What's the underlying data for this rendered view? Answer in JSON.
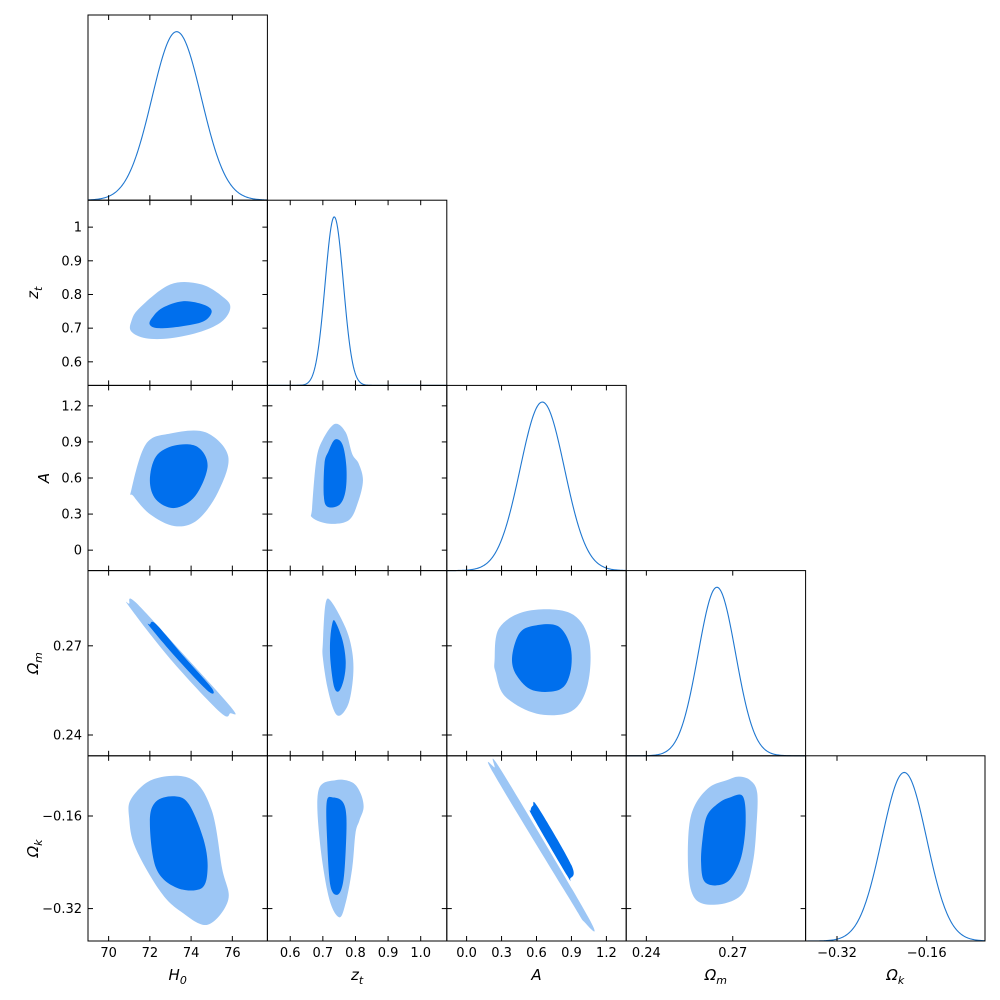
{
  "chart_data": {
    "type": "triangle-corner-plot",
    "colors": {
      "inner": "#006FED",
      "outer": "#9CC6F5",
      "line": "#1F77D0",
      "frame": "#000000"
    },
    "params": [
      {
        "key": "H0",
        "label": "H",
        "sub": "0",
        "range": [
          69,
          77.7
        ],
        "ticks": [
          70,
          72,
          74,
          76
        ],
        "tick_labels": [
          "70",
          "72",
          "74",
          "76"
        ],
        "mean": 73.3,
        "sigma": 1.2
      },
      {
        "key": "zt",
        "label": "z",
        "sub": "t",
        "range": [
          0.53,
          1.08
        ],
        "ticks": [
          0.6,
          0.7,
          0.8,
          0.9,
          1.0
        ],
        "tick_labels": [
          "0.6",
          "0.7",
          "0.8",
          "0.9",
          "1.0"
        ],
        "diag_tick_labels": [
          "0.6",
          "0.7",
          "0.8",
          "0.9",
          "1"
        ],
        "mean": 0.735,
        "sigma": 0.028
      },
      {
        "key": "A",
        "label": "A",
        "sub": "",
        "range": [
          -0.17,
          1.37
        ],
        "ticks": [
          0.0,
          0.3,
          0.6,
          0.9,
          1.2
        ],
        "tick_labels": [
          "0.0",
          "0.3",
          "0.6",
          "0.9",
          "1.2"
        ],
        "diag_tick_labels": [
          "0",
          "0.3",
          "0.6",
          "0.9",
          "1.2"
        ],
        "mean": 0.65,
        "sigma": 0.19
      },
      {
        "key": "Om",
        "label": "Ω",
        "sub": "m",
        "range": [
          0.233,
          0.2953
        ],
        "ticks": [
          0.24,
          0.27
        ],
        "tick_labels": [
          "0.24",
          "0.27"
        ],
        "mean": 0.2645,
        "sigma": 0.0065
      },
      {
        "key": "Ok",
        "label": "Ω",
        "sub": "k",
        "range": [
          -0.376,
          -0.056
        ],
        "ticks": [
          -0.32,
          -0.16
        ],
        "tick_labels": [
          "−0.32",
          "−0.16"
        ],
        "mean": -0.2,
        "sigma": 0.04
      }
    ],
    "contours": [
      {
        "row": 1,
        "col": 0,
        "outer": [
          [
            71.1,
            0.72
          ],
          [
            71.5,
            0.76
          ],
          [
            73.0,
            0.83
          ],
          [
            74.5,
            0.83
          ],
          [
            75.6,
            0.79
          ],
          [
            75.9,
            0.76
          ],
          [
            75.5,
            0.72
          ],
          [
            74.5,
            0.69
          ],
          [
            73.0,
            0.67
          ],
          [
            71.8,
            0.67
          ],
          [
            71.1,
            0.69
          ]
        ],
        "inner": [
          [
            72.1,
            0.73
          ],
          [
            72.6,
            0.76
          ],
          [
            73.6,
            0.78
          ],
          [
            74.6,
            0.77
          ],
          [
            75.0,
            0.75
          ],
          [
            74.6,
            0.72
          ],
          [
            73.5,
            0.705
          ],
          [
            72.4,
            0.7
          ],
          [
            72.0,
            0.71
          ]
        ]
      },
      {
        "row": 2,
        "col": 0,
        "outer": [
          [
            71.1,
            0.5
          ],
          [
            71.8,
            0.88
          ],
          [
            73.0,
            0.97
          ],
          [
            74.7,
            0.98
          ],
          [
            75.8,
            0.78
          ],
          [
            75.3,
            0.48
          ],
          [
            74.3,
            0.25
          ],
          [
            73.2,
            0.2
          ],
          [
            72.0,
            0.3
          ],
          [
            71.2,
            0.45
          ]
        ],
        "inner": [
          [
            72.0,
            0.58
          ],
          [
            72.3,
            0.78
          ],
          [
            73.2,
            0.87
          ],
          [
            74.3,
            0.86
          ],
          [
            74.8,
            0.7
          ],
          [
            74.2,
            0.45
          ],
          [
            73.2,
            0.35
          ],
          [
            72.3,
            0.42
          ]
        ]
      },
      {
        "row": 2,
        "col": 1,
        "outer": [
          [
            0.667,
            0.35
          ],
          [
            0.68,
            0.75
          ],
          [
            0.7,
            0.92
          ],
          [
            0.737,
            1.05
          ],
          [
            0.77,
            0.98
          ],
          [
            0.79,
            0.8
          ],
          [
            0.81,
            0.72
          ],
          [
            0.823,
            0.58
          ],
          [
            0.808,
            0.4
          ],
          [
            0.78,
            0.25
          ],
          [
            0.72,
            0.22
          ],
          [
            0.668,
            0.27
          ]
        ],
        "inner": [
          [
            0.703,
            0.45
          ],
          [
            0.705,
            0.72
          ],
          [
            0.717,
            0.82
          ],
          [
            0.737,
            0.92
          ],
          [
            0.76,
            0.88
          ],
          [
            0.772,
            0.7
          ],
          [
            0.77,
            0.5
          ],
          [
            0.752,
            0.38
          ],
          [
            0.715,
            0.36
          ]
        ]
      },
      {
        "row": 3,
        "col": 0,
        "outer": [
          [
            71.0,
            0.2842
          ],
          [
            71.3,
            0.2847
          ],
          [
            73.7,
            0.2666
          ],
          [
            76.0,
            0.2488
          ],
          [
            75.9,
            0.2473
          ],
          [
            75.4,
            0.2477
          ],
          [
            73.0,
            0.2655
          ],
          [
            71.0,
            0.2832
          ]
        ],
        "inner": [
          [
            72.0,
            0.2772
          ],
          [
            72.3,
            0.2773
          ],
          [
            73.6,
            0.2668
          ],
          [
            75.0,
            0.2558
          ],
          [
            74.8,
            0.2549
          ],
          [
            73.3,
            0.2658
          ],
          [
            72.0,
            0.2764
          ]
        ]
      },
      {
        "row": 3,
        "col": 1,
        "outer": [
          [
            0.7,
            0.271
          ],
          [
            0.708,
            0.284
          ],
          [
            0.725,
            0.285
          ],
          [
            0.77,
            0.276
          ],
          [
            0.79,
            0.268
          ],
          [
            0.793,
            0.26
          ],
          [
            0.78,
            0.251
          ],
          [
            0.755,
            0.2467
          ],
          [
            0.735,
            0.248
          ],
          [
            0.714,
            0.256
          ],
          [
            0.7,
            0.266
          ]
        ],
        "inner": [
          [
            0.722,
            0.271
          ],
          [
            0.728,
            0.277
          ],
          [
            0.737,
            0.2783
          ],
          [
            0.76,
            0.272
          ],
          [
            0.77,
            0.265
          ],
          [
            0.765,
            0.259
          ],
          [
            0.75,
            0.2548
          ],
          [
            0.735,
            0.256
          ],
          [
            0.724,
            0.264
          ]
        ]
      },
      {
        "row": 3,
        "col": 2,
        "outer": [
          [
            0.24,
            0.265
          ],
          [
            0.28,
            0.276
          ],
          [
            0.52,
            0.2817
          ],
          [
            0.89,
            0.281
          ],
          [
            1.05,
            0.272
          ],
          [
            1.04,
            0.257
          ],
          [
            0.9,
            0.248
          ],
          [
            0.6,
            0.2472
          ],
          [
            0.33,
            0.253
          ],
          [
            0.25,
            0.261
          ]
        ],
        "inner": [
          [
            0.39,
            0.266
          ],
          [
            0.45,
            0.274
          ],
          [
            0.57,
            0.2767
          ],
          [
            0.78,
            0.2767
          ],
          [
            0.89,
            0.27
          ],
          [
            0.89,
            0.261
          ],
          [
            0.8,
            0.2553
          ],
          [
            0.57,
            0.255
          ],
          [
            0.43,
            0.26
          ]
        ]
      },
      {
        "row": 4,
        "col": 0,
        "outer": [
          [
            71.1,
            -0.13
          ],
          [
            72.2,
            -0.096
          ],
          [
            74.0,
            -0.096
          ],
          [
            75.0,
            -0.15
          ],
          [
            75.5,
            -0.25
          ],
          [
            75.8,
            -0.305
          ],
          [
            74.8,
            -0.348
          ],
          [
            73.5,
            -0.325
          ],
          [
            72.5,
            -0.29
          ],
          [
            71.3,
            -0.215
          ],
          [
            71.0,
            -0.165
          ]
        ],
        "inner": [
          [
            72.0,
            -0.17
          ],
          [
            72.3,
            -0.135
          ],
          [
            73.2,
            -0.126
          ],
          [
            73.9,
            -0.14
          ],
          [
            74.6,
            -0.2
          ],
          [
            74.8,
            -0.25
          ],
          [
            74.5,
            -0.285
          ],
          [
            73.3,
            -0.284
          ],
          [
            72.3,
            -0.25
          ]
        ]
      },
      {
        "row": 4,
        "col": 1,
        "outer": [
          [
            0.687,
            -0.115
          ],
          [
            0.74,
            -0.098
          ],
          [
            0.79,
            -0.102
          ],
          [
            0.815,
            -0.12
          ],
          [
            0.825,
            -0.145
          ],
          [
            0.812,
            -0.168
          ],
          [
            0.8,
            -0.19
          ],
          [
            0.79,
            -0.25
          ],
          [
            0.77,
            -0.31
          ],
          [
            0.75,
            -0.335
          ],
          [
            0.718,
            -0.3
          ],
          [
            0.69,
            -0.2
          ]
        ],
        "inner": [
          [
            0.712,
            -0.135
          ],
          [
            0.732,
            -0.128
          ],
          [
            0.76,
            -0.135
          ],
          [
            0.772,
            -0.16
          ],
          [
            0.77,
            -0.22
          ],
          [
            0.762,
            -0.275
          ],
          [
            0.745,
            -0.296
          ],
          [
            0.723,
            -0.28
          ],
          [
            0.713,
            -0.2
          ]
        ]
      },
      {
        "row": 4,
        "col": 2,
        "outer": [
          [
            0.24,
            -0.076
          ],
          [
            0.3,
            -0.082
          ],
          [
            1.05,
            -0.337
          ],
          [
            1.01,
            -0.343
          ],
          [
            0.88,
            -0.302
          ],
          [
            0.23,
            -0.086
          ]
        ],
        "inner": [
          [
            0.57,
            -0.142
          ],
          [
            0.61,
            -0.144
          ],
          [
            0.9,
            -0.245
          ],
          [
            0.89,
            -0.268
          ],
          [
            0.86,
            -0.262
          ],
          [
            0.57,
            -0.162
          ],
          [
            0.55,
            -0.15
          ]
        ]
      },
      {
        "row": 4,
        "col": 3,
        "outer": [
          [
            0.2548,
            -0.18
          ],
          [
            0.257,
            -0.14
          ],
          [
            0.262,
            -0.11
          ],
          [
            0.268,
            -0.098
          ],
          [
            0.272,
            -0.092
          ],
          [
            0.276,
            -0.098
          ],
          [
            0.2785,
            -0.12
          ],
          [
            0.2782,
            -0.18
          ],
          [
            0.277,
            -0.24
          ],
          [
            0.274,
            -0.29
          ],
          [
            0.268,
            -0.31
          ],
          [
            0.26,
            -0.312
          ],
          [
            0.256,
            -0.295
          ],
          [
            0.2545,
            -0.25
          ]
        ],
        "inner": [
          [
            0.2595,
            -0.2
          ],
          [
            0.261,
            -0.16
          ],
          [
            0.265,
            -0.138
          ],
          [
            0.269,
            -0.128
          ],
          [
            0.2735,
            -0.126
          ],
          [
            0.2745,
            -0.17
          ],
          [
            0.273,
            -0.23
          ],
          [
            0.269,
            -0.27
          ],
          [
            0.264,
            -0.28
          ],
          [
            0.26,
            -0.272
          ],
          [
            0.259,
            -0.24
          ]
        ]
      }
    ]
  }
}
